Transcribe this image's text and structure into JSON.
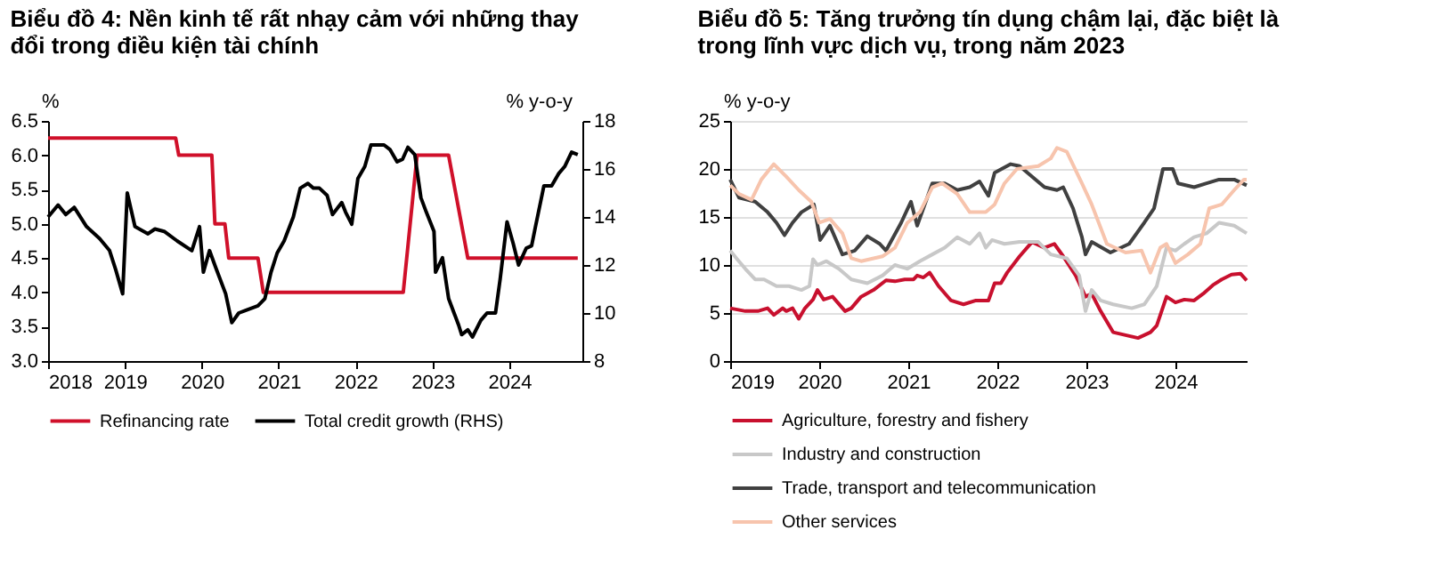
{
  "chart_data": [
    {
      "type": "line",
      "title": "Biểu đồ 4: Nền kinh tế rất nhạy cảm với những thay đổi trong điều kiện tài chính",
      "ylabel": "%",
      "y2label": "% y-o-y",
      "xlim": [
        2018,
        2024.95
      ],
      "xticks": [
        2018,
        2019,
        2020,
        2021,
        2022,
        2023,
        2024
      ],
      "ylim": [
        3,
        6.5
      ],
      "yticks": [
        {
          "value": 3,
          "label": "3.0"
        },
        3.5,
        {
          "value": 4,
          "label": "4.0"
        },
        4.5,
        {
          "value": 5,
          "label": "5.0"
        },
        5.5,
        {
          "value": 6,
          "label": "6.0"
        },
        6.5
      ],
      "y2lim": [
        8,
        18
      ],
      "y2ticks": [
        8,
        10,
        12,
        14,
        16,
        18
      ],
      "legend": "bottom",
      "grid": false,
      "series": [
        {
          "name": "Refinancing rate",
          "color": "#d0102a",
          "axis": "y",
          "x": [
            2018,
            2019.66,
            2019.7,
            2020.13,
            2020.17,
            2020.3,
            2020.35,
            2020.73,
            2020.8,
            2022.62,
            2022.8,
            2023.21,
            2023.46,
            2024.89
          ],
          "values": [
            6.25,
            6.25,
            6.0,
            6.0,
            5.0,
            5.0,
            4.5,
            4.5,
            4.0,
            4.0,
            6.0,
            6.0,
            4.5,
            4.5
          ]
        },
        {
          "name": "Total credit growth (RHS)",
          "color": "#000000",
          "axis": "y2",
          "x": [
            2018.0,
            2018.13,
            2018.23,
            2018.34,
            2018.5,
            2018.67,
            2018.8,
            2018.88,
            2018.97,
            2019.03,
            2019.13,
            2019.3,
            2019.39,
            2019.51,
            2019.68,
            2019.87,
            2019.97,
            2020.02,
            2020.1,
            2020.18,
            2020.31,
            2020.39,
            2020.48,
            2020.56,
            2020.73,
            2020.82,
            2020.9,
            2020.98,
            2021.07,
            2021.19,
            2021.28,
            2021.38,
            2021.45,
            2021.53,
            2021.63,
            2021.7,
            2021.82,
            2021.87,
            2021.95,
            2022.03,
            2022.12,
            2022.2,
            2022.37,
            2022.45,
            2022.54,
            2022.61,
            2022.68,
            2022.77,
            2022.85,
            2022.92,
            2023.02,
            2023.04,
            2023.13,
            2023.21,
            2023.34,
            2023.38,
            2023.46,
            2023.52,
            2023.63,
            2023.71,
            2023.82,
            2023.88,
            2023.97,
            2024.05,
            2024.12,
            2024.22,
            2024.29,
            2024.34,
            2024.45,
            2024.55,
            2024.64,
            2024.72,
            2024.81,
            2024.89
          ],
          "values": [
            14.0,
            14.5,
            14.1,
            14.4,
            13.6,
            13.1,
            12.6,
            11.8,
            10.8,
            15.0,
            13.6,
            13.3,
            13.5,
            13.4,
            13.0,
            12.6,
            13.6,
            11.7,
            12.6,
            11.9,
            10.8,
            9.6,
            10.0,
            10.1,
            10.3,
            10.6,
            11.7,
            12.5,
            13.0,
            14.0,
            15.2,
            15.4,
            15.2,
            15.2,
            14.9,
            14.1,
            14.6,
            14.2,
            13.7,
            15.6,
            16.1,
            17.0,
            17.0,
            16.8,
            16.3,
            16.4,
            16.9,
            16.6,
            14.8,
            14.2,
            13.4,
            11.7,
            12.3,
            10.6,
            9.5,
            9.1,
            9.3,
            9.0,
            9.7,
            10.0,
            10.0,
            11.4,
            13.8,
            12.9,
            12.0,
            12.7,
            12.8,
            13.6,
            15.3,
            15.3,
            15.8,
            16.1,
            16.7,
            16.6
          ]
        }
      ]
    },
    {
      "type": "line",
      "title": "Biểu đồ 5: Tăng trưởng tín dụng chậm lại, đặc biệt là trong lĩnh vực dịch vụ, trong năm 2023",
      "ylabel": "% y-o-y",
      "xlim": [
        2019,
        2024.8
      ],
      "xticks": [
        2019,
        2020,
        2021,
        2022,
        2023,
        2024
      ],
      "ylim": [
        0,
        25
      ],
      "yticks": [
        0,
        5,
        10,
        15,
        20,
        25
      ],
      "legend": "bottom",
      "grid": "y",
      "series": [
        {
          "name": "Agriculture, forestry and fishery",
          "color": "#c8102e",
          "x": [
            2019.0,
            2019.17,
            2019.31,
            2019.42,
            2019.49,
            2019.59,
            2019.63,
            2019.7,
            2019.77,
            2019.84,
            2019.93,
            2019.98,
            2020.05,
            2020.15,
            2020.29,
            2020.36,
            2020.47,
            2020.61,
            2020.75,
            2020.85,
            2020.96,
            2021.06,
            2021.1,
            2021.17,
            2021.24,
            2021.34,
            2021.48,
            2021.62,
            2021.76,
            2021.9,
            2021.97,
            2022.04,
            2022.11,
            2022.25,
            2022.39,
            2022.53,
            2022.64,
            2022.74,
            2022.88,
            2022.99,
            2023.06,
            2023.16,
            2023.3,
            2023.44,
            2023.58,
            2023.72,
            2023.79,
            2023.9,
            2024.0,
            2024.1,
            2024.21,
            2024.31,
            2024.42,
            2024.52,
            2024.63,
            2024.73,
            2024.8
          ],
          "values": [
            5.5,
            5.2,
            5.2,
            5.5,
            4.8,
            5.5,
            5.2,
            5.5,
            4.4,
            5.5,
            6.4,
            7.4,
            6.4,
            6.7,
            5.2,
            5.5,
            6.7,
            7.4,
            8.4,
            8.3,
            8.5,
            8.5,
            8.9,
            8.7,
            9.2,
            7.8,
            6.3,
            5.9,
            6.3,
            6.3,
            8.1,
            8.1,
            9.2,
            10.9,
            12.4,
            11.8,
            12.2,
            10.9,
            8.9,
            6.7,
            7.0,
            5.2,
            3.0,
            2.7,
            2.4,
            3.0,
            3.7,
            6.7,
            6.1,
            6.4,
            6.3,
            7.0,
            7.9,
            8.5,
            9.0,
            9.1,
            8.4
          ]
        },
        {
          "name": "Industry and construction",
          "color": "#c8c8c8",
          "x": [
            2019.0,
            2019.07,
            2019.17,
            2019.28,
            2019.38,
            2019.52,
            2019.66,
            2019.8,
            2019.89,
            2019.93,
            2019.98,
            2020.08,
            2020.22,
            2020.36,
            2020.54,
            2020.71,
            2020.85,
            2020.99,
            2021.13,
            2021.27,
            2021.41,
            2021.55,
            2021.69,
            2021.8,
            2021.87,
            2021.94,
            2022.08,
            2022.25,
            2022.46,
            2022.6,
            2022.78,
            2022.92,
            2022.99,
            2023.06,
            2023.16,
            2023.3,
            2023.51,
            2023.65,
            2023.79,
            2023.9,
            2024.0,
            2024.1,
            2024.21,
            2024.35,
            2024.49,
            2024.66,
            2024.8
          ],
          "values": [
            11.5,
            10.7,
            9.6,
            8.5,
            8.5,
            7.8,
            7.8,
            7.4,
            7.8,
            10.6,
            10.0,
            10.4,
            9.6,
            8.5,
            8.1,
            8.9,
            10.0,
            9.6,
            10.4,
            11.1,
            11.8,
            12.9,
            12.2,
            13.3,
            11.8,
            12.6,
            12.2,
            12.4,
            12.4,
            11.1,
            10.7,
            8.9,
            5.2,
            7.4,
            6.3,
            5.9,
            5.5,
            5.9,
            7.8,
            11.8,
            11.5,
            12.2,
            12.9,
            13.3,
            14.4,
            14.1,
            13.3
          ]
        },
        {
          "name": "Trade, transport and telecommunication",
          "color": "#404040",
          "x": [
            2019.0,
            2019.1,
            2019.28,
            2019.42,
            2019.52,
            2019.61,
            2019.7,
            2019.8,
            2019.94,
            2020.01,
            2020.12,
            2020.26,
            2020.4,
            2020.54,
            2020.68,
            2020.75,
            2020.92,
            2021.03,
            2021.1,
            2021.27,
            2021.41,
            2021.55,
            2021.69,
            2021.8,
            2021.9,
            2021.97,
            2022.15,
            2022.25,
            2022.53,
            2022.67,
            2022.74,
            2022.85,
            2022.95,
            2022.99,
            2023.06,
            2023.27,
            2023.48,
            2023.65,
            2023.76,
            2023.86,
            2023.97,
            2024.03,
            2024.21,
            2024.35,
            2024.49,
            2024.66,
            2024.8
          ],
          "values": [
            18.9,
            17.0,
            16.6,
            15.5,
            14.4,
            13.1,
            14.4,
            15.5,
            16.3,
            12.6,
            14.1,
            11.1,
            11.5,
            13.0,
            12.2,
            11.5,
            14.4,
            16.6,
            14.1,
            18.5,
            18.5,
            17.8,
            18.1,
            18.7,
            17.2,
            19.6,
            20.5,
            20.3,
            18.1,
            17.8,
            18.1,
            15.9,
            12.9,
            11.1,
            12.4,
            11.3,
            12.2,
            14.4,
            15.9,
            20.0,
            20.0,
            18.5,
            18.1,
            18.5,
            18.9,
            18.9,
            18.3
          ]
        },
        {
          "name": "Other services",
          "color": "#f7c4ad",
          "x": [
            2019.0,
            2019.1,
            2019.24,
            2019.35,
            2019.49,
            2019.63,
            2019.77,
            2019.91,
            2020.0,
            2020.12,
            2020.26,
            2020.36,
            2020.47,
            2020.71,
            2020.85,
            2020.99,
            2021.13,
            2021.27,
            2021.38,
            2021.55,
            2021.69,
            2021.87,
            2021.97,
            2022.08,
            2022.22,
            2022.46,
            2022.6,
            2022.67,
            2022.78,
            2022.95,
            2023.06,
            2023.23,
            2023.44,
            2023.62,
            2023.72,
            2023.83,
            2023.9,
            2024.0,
            2024.14,
            2024.28,
            2024.38,
            2024.52,
            2024.66,
            2024.77,
            2024.8
          ],
          "values": [
            18.3,
            17.4,
            16.8,
            18.9,
            20.5,
            19.2,
            17.8,
            16.6,
            14.4,
            14.8,
            13.3,
            10.7,
            10.4,
            10.9,
            11.8,
            14.4,
            15.5,
            18.1,
            18.5,
            17.4,
            15.5,
            15.5,
            16.3,
            18.5,
            20.0,
            20.3,
            21.1,
            22.2,
            21.8,
            18.5,
            16.3,
            12.2,
            11.3,
            11.5,
            9.2,
            11.8,
            12.2,
            10.2,
            11.1,
            12.2,
            15.9,
            16.3,
            17.8,
            18.9,
            18.9
          ]
        }
      ]
    }
  ]
}
